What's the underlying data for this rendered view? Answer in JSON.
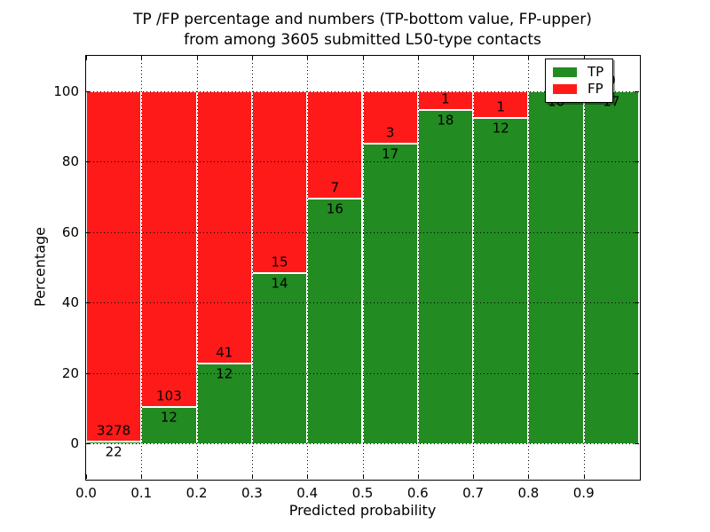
{
  "title": {
    "line1": "TP /FP percentage and numbers (TP-bottom value, FP-upper)",
    "line2": "from among 3605 submitted L50-type contacts"
  },
  "chart_data": {
    "type": "bar",
    "stacked": true,
    "normalized_to_percent": true,
    "title": "TP /FP percentage and numbers (TP-bottom value, FP-upper) from among 3605 submitted L50-type contacts",
    "xlabel": "Predicted probability",
    "ylabel": "Percentage",
    "total_contacts": 3605,
    "bin_edges": [
      0.0,
      0.1,
      0.2,
      0.3,
      0.4,
      0.5,
      0.6,
      0.7,
      0.8,
      0.9,
      1.0
    ],
    "series": [
      {
        "name": "TP",
        "color": "#228b22",
        "values": [
          22,
          12,
          12,
          14,
          16,
          17,
          18,
          12,
          16,
          17
        ]
      },
      {
        "name": "FP",
        "color": "#ff1a1a",
        "values": [
          3278,
          103,
          41,
          15,
          7,
          3,
          1,
          1,
          0,
          0
        ]
      }
    ],
    "tp_percent_by_bin": [
      0.67,
      10.43,
      22.64,
      48.28,
      69.57,
      85.0,
      94.74,
      92.31,
      100.0,
      100.0
    ],
    "xlim": [
      0.0,
      1.0
    ],
    "ylim": [
      -10,
      110
    ],
    "xticks": [
      {
        "value": 0.0,
        "label": "0.0"
      },
      {
        "value": 0.1,
        "label": "0.1"
      },
      {
        "value": 0.2,
        "label": "0.2"
      },
      {
        "value": 0.3,
        "label": "0.3"
      },
      {
        "value": 0.4,
        "label": "0.4"
      },
      {
        "value": 0.5,
        "label": "0.5"
      },
      {
        "value": 0.6,
        "label": "0.6"
      },
      {
        "value": 0.7,
        "label": "0.7"
      },
      {
        "value": 0.8,
        "label": "0.8"
      },
      {
        "value": 0.9,
        "label": "0.9"
      }
    ],
    "yticks": [
      {
        "value": 0,
        "label": "0"
      },
      {
        "value": 20,
        "label": "20"
      },
      {
        "value": 40,
        "label": "40"
      },
      {
        "value": 60,
        "label": "60"
      },
      {
        "value": 80,
        "label": "80"
      },
      {
        "value": 100,
        "label": "100"
      }
    ],
    "grid": "dotted",
    "grid_color": "#000000",
    "bar_edge_color": "#ffffff",
    "legend": {
      "position": "upper right",
      "entries": [
        {
          "label": "TP",
          "color": "#228b22"
        },
        {
          "label": "FP",
          "color": "#ff1a1a"
        }
      ]
    }
  }
}
